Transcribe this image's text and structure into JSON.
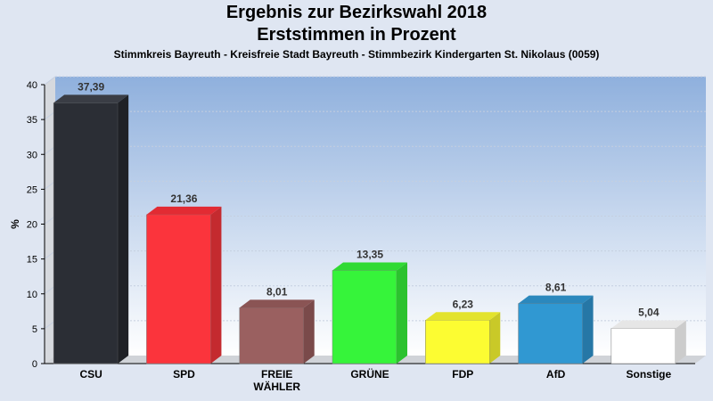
{
  "header": {
    "title": "Ergebnis zur Bezirkswahl 2018",
    "subtitle": "Erststimmen in Prozent",
    "description": "Stimmkreis Bayreuth - Kreisfreie Stadt Bayreuth - Stimmbezirk Kindergarten St. Nikolaus (0059)"
  },
  "chart_data": {
    "type": "bar",
    "title": "Ergebnis zur Bezirkswahl 2018",
    "subtitle": "Erststimmen in Prozent",
    "xlabel": "",
    "ylabel": "%",
    "ylim": [
      0,
      40
    ],
    "yticks": [
      0,
      5,
      10,
      15,
      20,
      25,
      30,
      35,
      40
    ],
    "grid": true,
    "categories": [
      "CSU",
      "SPD",
      "FREIE WÄHLER",
      "GRÜNE",
      "FDP",
      "AfD",
      "Sonstige"
    ],
    "category_labels": [
      [
        "CSU"
      ],
      [
        "SPD"
      ],
      [
        "FREIE",
        "WÄHLER"
      ],
      [
        "GRÜNE"
      ],
      [
        "FDP"
      ],
      [
        "AfD"
      ],
      [
        "Sonstige"
      ]
    ],
    "values": [
      37.39,
      21.36,
      8.01,
      13.35,
      6.23,
      8.61,
      5.04
    ],
    "value_labels": [
      "37,39",
      "21,36",
      "8,01",
      "13,35",
      "6,23",
      "8,61",
      "5,04"
    ],
    "colors": [
      "#2b2e35",
      "#fb343c",
      "#9a6060",
      "#36f43a",
      "#fcfc32",
      "#3098d2",
      "#ffffff"
    ],
    "side_colors": [
      "#1f2126",
      "#c42a2f",
      "#7a4a4a",
      "#2cc22f",
      "#c9c928",
      "#2677a6",
      "#cccccc"
    ],
    "top_colors": [
      "#3a3d45",
      "#e22b33",
      "#8a5454",
      "#30da33",
      "#e3e32d",
      "#2b88bd",
      "#e6e6e6"
    ],
    "background_gradient": [
      "#8fb0dd",
      "#ffffff"
    ]
  }
}
